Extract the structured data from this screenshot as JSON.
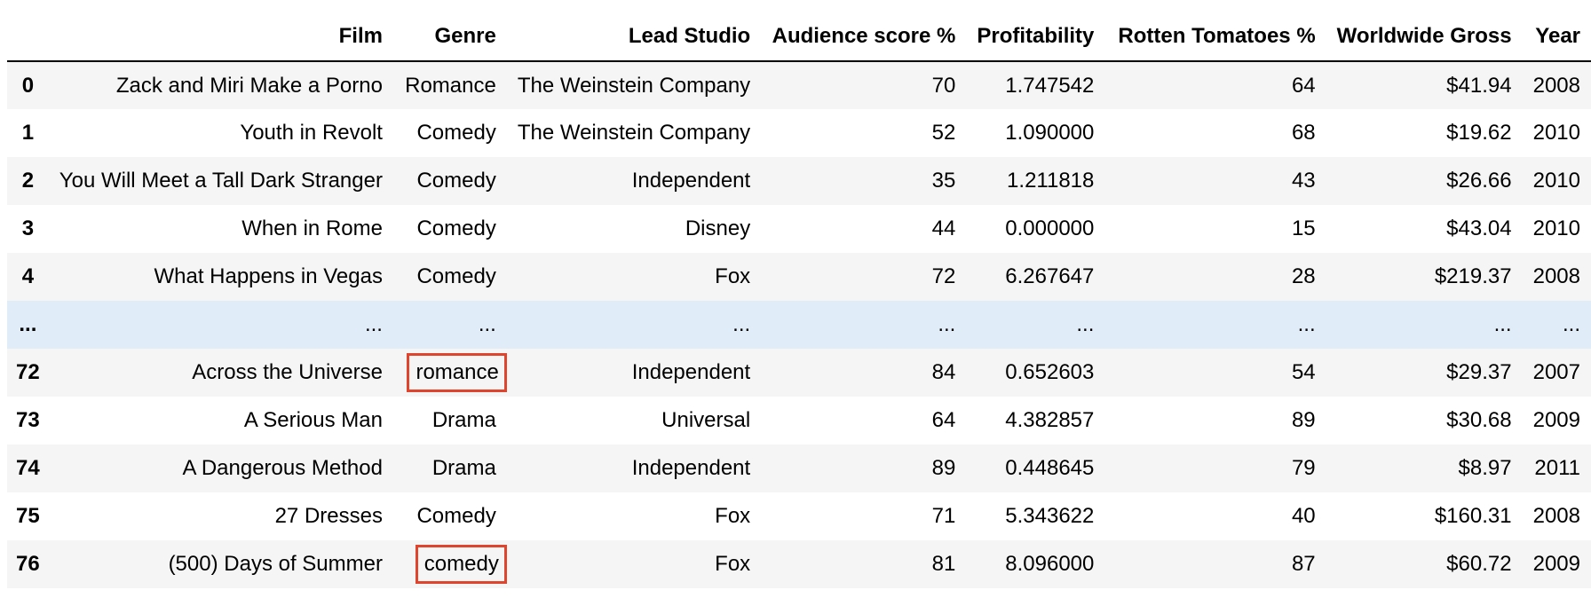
{
  "table": {
    "index_header": "",
    "columns": [
      "Film",
      "Genre",
      "Lead Studio",
      "Audience score %",
      "Profitability",
      "Rotten Tomatoes %",
      "Worldwide Gross",
      "Year"
    ],
    "rows": [
      {
        "index": "0",
        "film": "Zack and Miri Make a Porno",
        "genre": "Romance",
        "studio": "The Weinstein Company",
        "audience": "70",
        "profit": "1.747542",
        "rt": "64",
        "gross": "$41.94",
        "year": "2008"
      },
      {
        "index": "1",
        "film": "Youth in Revolt",
        "genre": "Comedy",
        "studio": "The Weinstein Company",
        "audience": "52",
        "profit": "1.090000",
        "rt": "68",
        "gross": "$19.62",
        "year": "2010"
      },
      {
        "index": "2",
        "film": "You Will Meet a Tall Dark Stranger",
        "genre": "Comedy",
        "studio": "Independent",
        "audience": "35",
        "profit": "1.211818",
        "rt": "43",
        "gross": "$26.66",
        "year": "2010"
      },
      {
        "index": "3",
        "film": "When in Rome",
        "genre": "Comedy",
        "studio": "Disney",
        "audience": "44",
        "profit": "0.000000",
        "rt": "15",
        "gross": "$43.04",
        "year": "2010"
      },
      {
        "index": "4",
        "film": "What Happens in Vegas",
        "genre": "Comedy",
        "studio": "Fox",
        "audience": "72",
        "profit": "6.267647",
        "rt": "28",
        "gross": "$219.37",
        "year": "2008"
      },
      {
        "index": "...",
        "film": "...",
        "genre": "...",
        "studio": "...",
        "audience": "...",
        "profit": "...",
        "rt": "...",
        "gross": "...",
        "year": "..."
      },
      {
        "index": "72",
        "film": "Across the Universe",
        "genre": "romance",
        "studio": "Independent",
        "audience": "84",
        "profit": "0.652603",
        "rt": "54",
        "gross": "$29.37",
        "year": "2007"
      },
      {
        "index": "73",
        "film": "A Serious Man",
        "genre": "Drama",
        "studio": "Universal",
        "audience": "64",
        "profit": "4.382857",
        "rt": "89",
        "gross": "$30.68",
        "year": "2009"
      },
      {
        "index": "74",
        "film": "A Dangerous Method",
        "genre": "Drama",
        "studio": "Independent",
        "audience": "89",
        "profit": "0.448645",
        "rt": "79",
        "gross": "$8.97",
        "year": "2011"
      },
      {
        "index": "75",
        "film": "27 Dresses",
        "genre": "Comedy",
        "studio": "Fox",
        "audience": "71",
        "profit": "5.343622",
        "rt": "40",
        "gross": "$160.31",
        "year": "2008"
      },
      {
        "index": "76",
        "film": "(500) Days of Summer",
        "genre": "comedy",
        "studio": "Fox",
        "audience": "81",
        "profit": "8.096000",
        "rt": "87",
        "gross": "$60.72",
        "year": "2009"
      }
    ],
    "highlighted_genre_rows": [
      6,
      10
    ],
    "ellipsis_row": 5
  },
  "colors": {
    "row_odd": "#f5f5f5",
    "row_even": "#ffffff",
    "row_ellipsis": "#e1ecf9",
    "highlight_border": "#e0442c",
    "header_rule": "#000000"
  }
}
